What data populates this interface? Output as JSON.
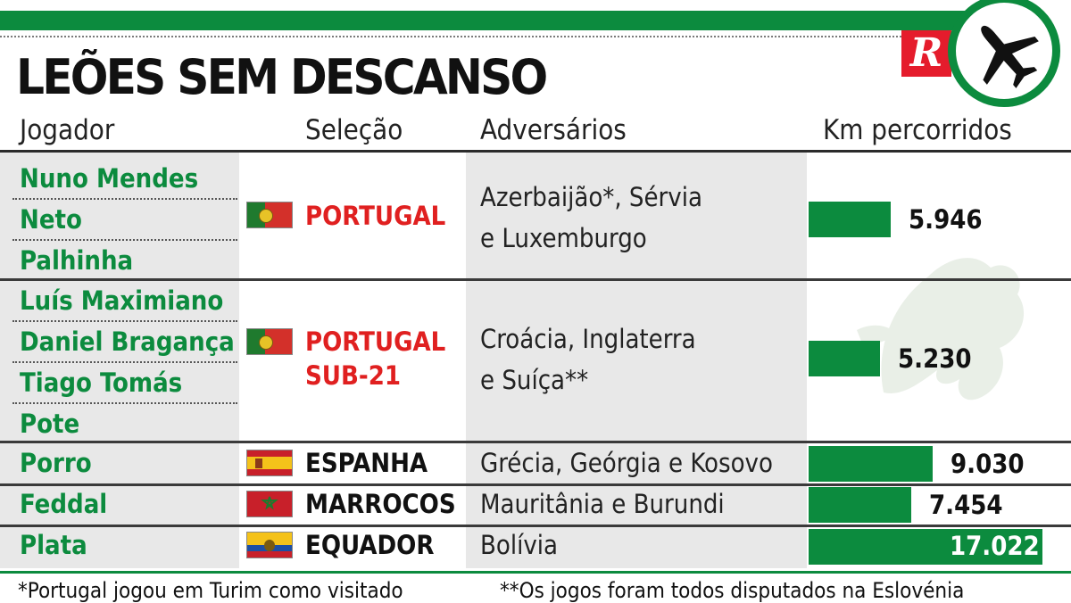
{
  "title": "LEÕES SEM DESCANSO",
  "logo_letter": "R",
  "colors": {
    "brand_green": "#0c8b3e",
    "logo_red": "#e51c2c",
    "portugal_red": "#e02020"
  },
  "icons": {
    "plane": "airplane-icon",
    "watermark": "lion-emblem"
  },
  "headers": {
    "player": "Jogador",
    "team": "Seleção",
    "opponents": "Adversários",
    "km": "Km percorridos"
  },
  "groups": [
    {
      "players": [
        "Nuno Mendes",
        "Neto",
        "Palhinha"
      ],
      "team": "PORTUGAL",
      "team_line2": "",
      "opponents_line1": "Azerbaijão*, Sérvia",
      "opponents_line2": "e Luxemburgo",
      "km_label": "5.946"
    },
    {
      "players": [
        "Luís Maximiano",
        "Daniel Bragança",
        "Tiago Tomás",
        "Pote"
      ],
      "team": "PORTUGAL",
      "team_line2": "SUB-21",
      "opponents_line1": "Croácia, Inglaterra",
      "opponents_line2": "e Suíça**",
      "km_label": "5.230"
    },
    {
      "players": [
        "Porro"
      ],
      "team": "ESPANHA",
      "team_line2": "",
      "opponents_line1": "Grécia, Geórgia e Kosovo",
      "opponents_line2": "",
      "km_label": "9.030"
    },
    {
      "players": [
        "Feddal"
      ],
      "team": "MARROCOS",
      "team_line2": "",
      "opponents_line1": "Mauritânia e Burundi",
      "opponents_line2": "",
      "km_label": "7.454"
    },
    {
      "players": [
        "Plata"
      ],
      "team": "EQUADOR",
      "team_line2": "",
      "opponents_line1": "Bolívia",
      "opponents_line2": "",
      "km_label": "17.022"
    }
  ],
  "footnotes": {
    "left": "*Portugal jogou em Turim como visitado",
    "right": "**Os jogos foram todos disputados na Eslovénia"
  },
  "chart_data": {
    "type": "bar",
    "orientation": "horizontal",
    "title": "LEÕES SEM DESCANSO",
    "categories": [
      "PORTUGAL",
      "PORTUGAL SUB-21",
      "ESPANHA",
      "MARROCOS",
      "EQUADOR"
    ],
    "series": [
      {
        "name": "Km percorridos",
        "values": [
          5946,
          5230,
          9030,
          7454,
          17022
        ]
      }
    ],
    "xlim": [
      0,
      17022
    ]
  }
}
